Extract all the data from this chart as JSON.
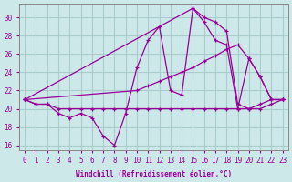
{
  "xlabel": "Windchill (Refroidissement éolien,°C)",
  "bg_color": "#cce8e8",
  "grid_color": "#aacccc",
  "line_color": "#990099",
  "xlim": [
    -0.5,
    23.5
  ],
  "ylim": [
    15.5,
    31.5
  ],
  "yticks": [
    16,
    18,
    20,
    22,
    24,
    26,
    28,
    30
  ],
  "xticks": [
    0,
    1,
    2,
    3,
    4,
    5,
    6,
    7,
    8,
    9,
    10,
    11,
    12,
    13,
    14,
    15,
    16,
    17,
    18,
    19,
    20,
    21,
    22,
    23
  ],
  "series": [
    {
      "x": [
        0,
        1,
        2,
        3,
        4,
        5,
        6,
        7,
        8,
        9,
        10,
        11,
        12,
        13,
        14,
        15,
        16,
        17,
        18,
        19,
        20,
        21,
        22,
        23
      ],
      "y": [
        21,
        20.5,
        20.5,
        19.5,
        19.0,
        19.5,
        19.0,
        17.0,
        16.0,
        19.5,
        24.5,
        27.5,
        29.0,
        22.0,
        21.5,
        31.0,
        30.0,
        29.5,
        28.5,
        20.5,
        20.0,
        20.5,
        21.0,
        21.0
      ]
    },
    {
      "x": [
        0,
        10,
        11,
        12,
        13,
        14,
        15,
        16,
        17,
        18,
        19,
        20,
        21,
        22,
        23
      ],
      "y": [
        21,
        22.0,
        22.5,
        23.0,
        23.5,
        24.0,
        24.5,
        25.2,
        25.8,
        26.5,
        27.0,
        25.5,
        23.5,
        21.0,
        21.0
      ]
    },
    {
      "x": [
        0,
        1,
        2,
        3,
        4,
        5,
        6,
        7,
        8,
        9,
        10,
        11,
        12,
        13,
        14,
        15,
        16,
        17,
        18,
        19,
        20,
        21,
        22,
        23
      ],
      "y": [
        21,
        20.5,
        20.5,
        20.0,
        20.0,
        20.0,
        20.0,
        20.0,
        20.0,
        20.0,
        20.0,
        20.0,
        20.0,
        20.0,
        20.0,
        20.0,
        20.0,
        20.0,
        20.0,
        20.0,
        20.0,
        20.0,
        20.5,
        21.0
      ]
    },
    {
      "x": [
        0,
        15,
        16,
        17,
        18,
        19,
        20,
        21,
        22,
        23
      ],
      "y": [
        21,
        31.0,
        29.5,
        27.5,
        27.0,
        20.0,
        25.5,
        23.5,
        21.0,
        21.0
      ]
    }
  ]
}
